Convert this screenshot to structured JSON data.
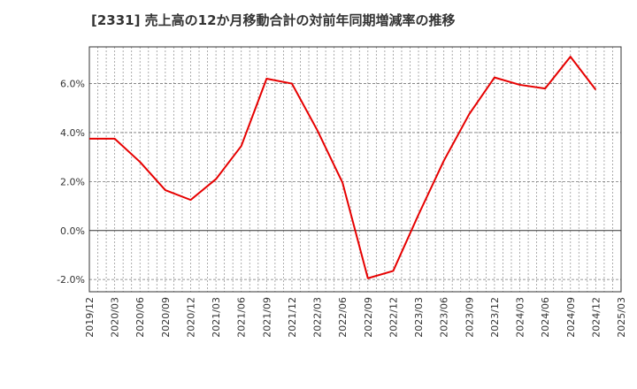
{
  "chart_data": {
    "type": "line",
    "title": "[2331]  売上高の12か月移動合計の対前年同期増減率の推移",
    "xlabel": "",
    "ylabel": "",
    "ylim": [
      -2.5,
      7.5
    ],
    "xlim": [
      "2019/12",
      "2025/03"
    ],
    "yticks": [
      -2.0,
      0.0,
      2.0,
      4.0,
      6.0
    ],
    "ytick_labels": [
      "-2.0%",
      "0.0%",
      "2.0%",
      "4.0%",
      "6.0%"
    ],
    "xtick_labels": [
      "2019/12",
      "2020/03",
      "2020/06",
      "2020/09",
      "2020/12",
      "2021/03",
      "2021/06",
      "2021/09",
      "2021/12",
      "2022/03",
      "2022/06",
      "2022/09",
      "2022/12",
      "2023/03",
      "2023/06",
      "2023/09",
      "2023/12",
      "2024/03",
      "2024/06",
      "2024/09",
      "2024/12",
      "2025/03"
    ],
    "grid": true,
    "series": [
      {
        "name": "対前年同期増減率",
        "color": "#e60000",
        "x": [
          "2019/12",
          "2020/03",
          "2020/06",
          "2020/09",
          "2020/12",
          "2021/03",
          "2021/06",
          "2021/09",
          "2021/12",
          "2022/03",
          "2022/06",
          "2022/09",
          "2022/12",
          "2023/03",
          "2023/06",
          "2023/09",
          "2023/12",
          "2024/03",
          "2024/06",
          "2024/09",
          "2024/12"
        ],
        "values": [
          3.75,
          3.75,
          2.8,
          1.65,
          1.25,
          2.1,
          3.45,
          6.2,
          6.0,
          4.1,
          1.95,
          -1.95,
          -1.65,
          0.65,
          2.85,
          4.75,
          6.25,
          5.95,
          5.8,
          7.1,
          5.75
        ]
      }
    ]
  }
}
